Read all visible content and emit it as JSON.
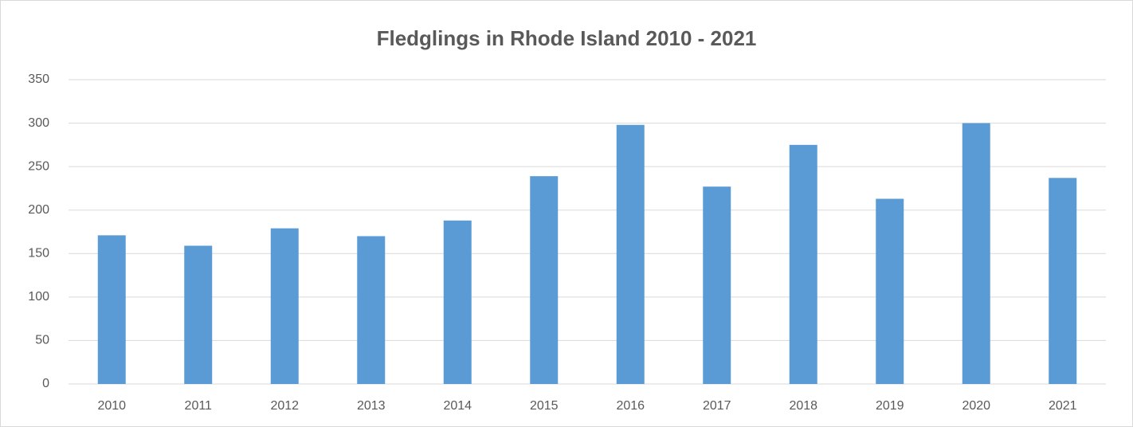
{
  "chart_data": {
    "type": "bar",
    "title": "Fledglings in Rhode Island 2010 - 2021",
    "categories": [
      "2010",
      "2011",
      "2012",
      "2013",
      "2014",
      "2015",
      "2016",
      "2017",
      "2018",
      "2019",
      "2020",
      "2021"
    ],
    "values": [
      171,
      159,
      179,
      170,
      188,
      239,
      298,
      227,
      275,
      213,
      300,
      237
    ],
    "color": "#5b9bd5",
    "ylim": [
      0,
      350
    ],
    "yticks": [
      0,
      50,
      100,
      150,
      200,
      250,
      300,
      350
    ],
    "grid": true
  }
}
